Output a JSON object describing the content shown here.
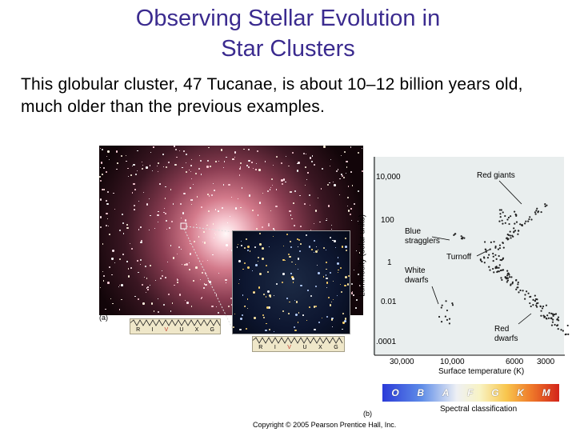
{
  "slide": {
    "title_line1": "Observing Stellar Evolution in",
    "title_line2": "Star Clusters",
    "body_part1": "This ",
    "body_part2": "globular cluster",
    "body_part3": ", 47 Tucanae, is about 10–12 billion years old, much ",
    "body_part4": "older",
    "body_part5": " than the previous examples."
  },
  "figure_a": {
    "label": "(a)",
    "filters_a": [
      "R",
      "I",
      "V",
      "U",
      "X",
      "G"
    ],
    "filters_b": [
      "R",
      "I",
      "V",
      "U",
      "X",
      "G"
    ]
  },
  "figure_b": {
    "label": "(b)",
    "y_axis_label": "Luminosity (solar units)",
    "y_ticks": [
      "10,000",
      "100",
      "1",
      "0.01",
      ".0001"
    ],
    "x_ticks": [
      "30,000",
      "10,000",
      "6000",
      "3000"
    ],
    "x_axis_label": "Surface temperature (K)",
    "annotations": {
      "red_giants": "Red giants",
      "blue_stragglers_1": "Blue",
      "blue_stragglers_2": "stragglers",
      "turnoff": "Turnoff",
      "white_dwarfs_1": "White",
      "white_dwarfs_2": "dwarfs",
      "red_dwarfs_1": "Red",
      "red_dwarfs_2": "dwarfs"
    },
    "spectral_classes": [
      "O",
      "B",
      "A",
      "F",
      "G",
      "K",
      "M"
    ],
    "spectral_caption": "Spectral classification"
  },
  "copyright": "Copyright © 2005 Pearson Prentice Hall, Inc."
}
